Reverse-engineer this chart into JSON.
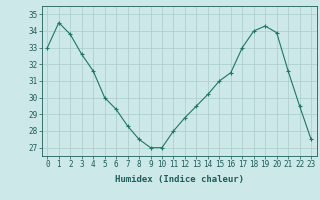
{
  "x": [
    0,
    1,
    2,
    3,
    4,
    5,
    6,
    7,
    8,
    9,
    10,
    11,
    12,
    13,
    14,
    15,
    16,
    17,
    18,
    19,
    20,
    21,
    22,
    23
  ],
  "y": [
    33,
    34.5,
    33.8,
    32.6,
    31.6,
    30.0,
    29.3,
    28.3,
    27.5,
    27.0,
    27.0,
    28.0,
    28.8,
    29.5,
    30.2,
    31.0,
    31.5,
    33.0,
    34.0,
    34.3,
    33.9,
    31.6,
    29.5,
    27.5
  ],
  "line_color": "#1a7a5e",
  "marker": "+",
  "bg_color": "#cce8e8",
  "grid_color": "#aacccc",
  "xlabel": "Humidex (Indice chaleur)",
  "ylim": [
    26.5,
    35.5
  ],
  "xlim": [
    -0.5,
    23.5
  ],
  "yticks": [
    27,
    28,
    29,
    30,
    31,
    32,
    33,
    34,
    35
  ],
  "xticks": [
    0,
    1,
    2,
    3,
    4,
    5,
    6,
    7,
    8,
    9,
    10,
    11,
    12,
    13,
    14,
    15,
    16,
    17,
    18,
    19,
    20,
    21,
    22,
    23
  ],
  "tick_color": "#1a5f5a",
  "label_fontsize": 6.5,
  "tick_fontsize": 5.5
}
